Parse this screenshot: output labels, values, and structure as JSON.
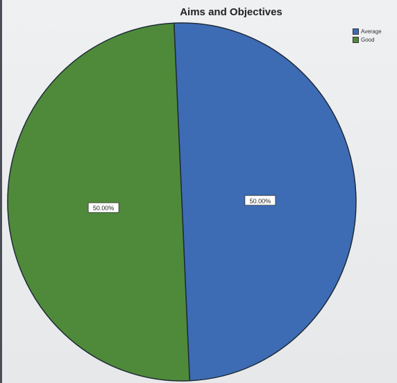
{
  "chart_data": {
    "type": "pie",
    "title": "Aims and Objectives",
    "categories": [
      "Average",
      "Good"
    ],
    "values": [
      50.0,
      50.0
    ],
    "data_labels": [
      "50.00%",
      "50.00%"
    ],
    "colors": [
      "#3d6cb5",
      "#4f8a3a"
    ],
    "legend_position": "top-right"
  }
}
